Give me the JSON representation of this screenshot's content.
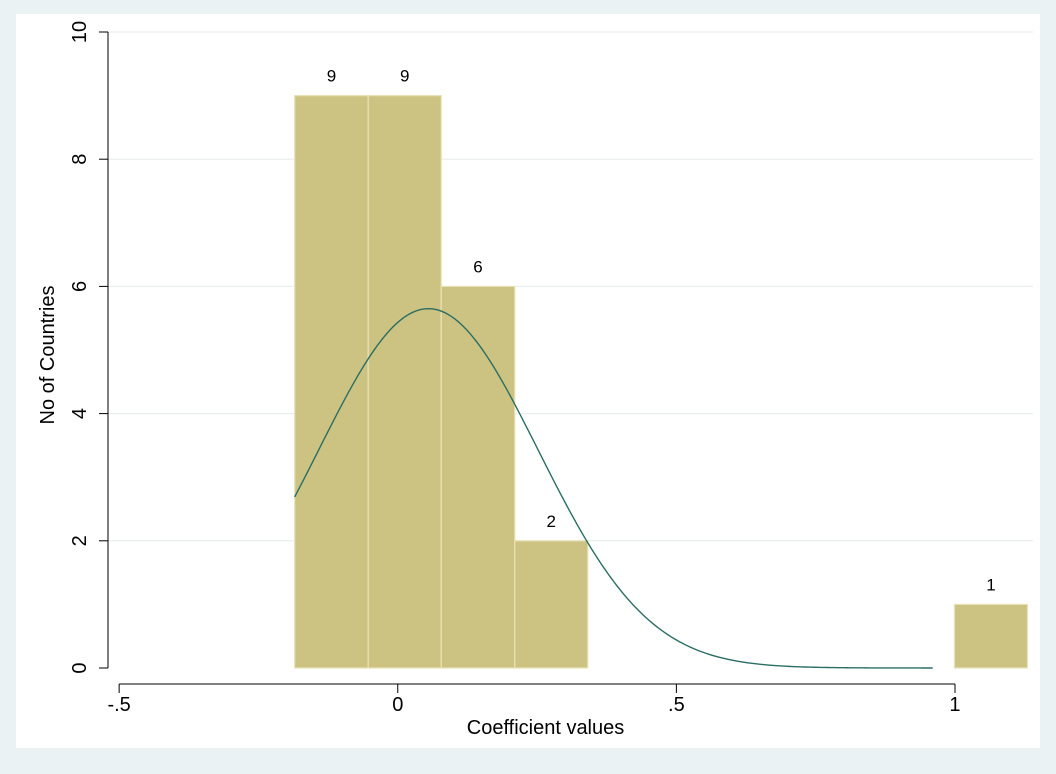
{
  "chart_data": {
    "type": "bar",
    "subtype": "histogram-with-normal-density",
    "title": "",
    "xlabel": "Coefficient values",
    "ylabel": "No of Countries",
    "xlim": [
      -0.52,
      1.14
    ],
    "ylim": [
      0,
      10
    ],
    "x_ticks": [
      -0.5,
      0,
      0.5,
      1
    ],
    "x_tick_labels": [
      "-.5",
      "0",
      ".5",
      "1"
    ],
    "y_ticks": [
      0,
      2,
      4,
      6,
      8,
      10
    ],
    "y_tick_labels": [
      "0",
      "2",
      "4",
      "6",
      "8",
      "10"
    ],
    "grid": true,
    "bars": [
      {
        "x0": -0.185,
        "x1": -0.053,
        "value": 9,
        "label": "9"
      },
      {
        "x0": -0.053,
        "x1": 0.078,
        "value": 9,
        "label": "9"
      },
      {
        "x0": 0.078,
        "x1": 0.21,
        "value": 6,
        "label": "6"
      },
      {
        "x0": 0.21,
        "x1": 0.341,
        "value": 2,
        "label": "2"
      },
      {
        "x0": 0.341,
        "x1": 0.473,
        "value": 0,
        "label": ""
      },
      {
        "x0": 0.473,
        "x1": 0.604,
        "value": 0,
        "label": ""
      },
      {
        "x0": 0.604,
        "x1": 0.736,
        "value": 0,
        "label": ""
      },
      {
        "x0": 0.736,
        "x1": 0.867,
        "value": 0,
        "label": ""
      },
      {
        "x0": 0.867,
        "x1": 0.999,
        "value": 0,
        "label": ""
      },
      {
        "x0": 0.999,
        "x1": 1.13,
        "value": 1,
        "label": "1"
      }
    ],
    "density_curve": {
      "mean": 0.055,
      "sd": 0.197,
      "x_range": [
        -0.185,
        0.96
      ],
      "peak_value": 5.65
    },
    "colors": {
      "bar_fill": "#ccc382",
      "bar_edge": "#e8e2b8",
      "curve": "#2a6e64",
      "grid": "#e6ebec",
      "plot_bg": "#ffffff",
      "page_bg": "#eaf2f3"
    }
  }
}
